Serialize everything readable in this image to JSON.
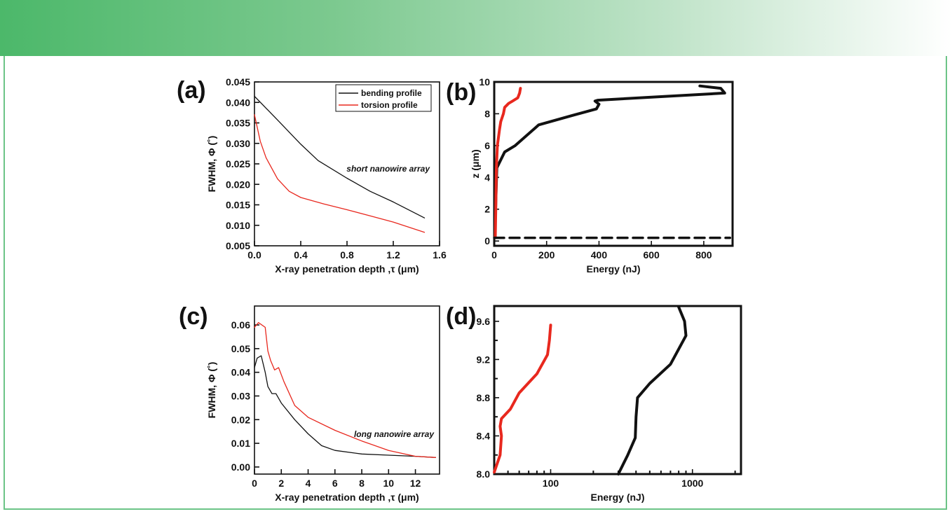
{
  "colors": {
    "bending": "#111111",
    "torsion": "#e8281e",
    "banner_start": "#4cb86a",
    "frame": "#6cc487"
  },
  "chart_data": [
    {
      "panel": "(a)",
      "type": "line",
      "xlabel": "X-ray penetration depth ,τ (μm)",
      "ylabel": "FWHM, Φ (˚)",
      "xlim": [
        0.0,
        1.6
      ],
      "ylim": [
        0.005,
        0.045
      ],
      "xticks": [
        "0.0",
        "0.4",
        "0.8",
        "1.2",
        "1.6"
      ],
      "yticks": [
        "0.005",
        "0.010",
        "0.015",
        "0.020",
        "0.025",
        "0.030",
        "0.035",
        "0.040",
        "0.045"
      ],
      "annotation": "short nanowire array",
      "legend": [
        "bending profile",
        "torsion profile"
      ],
      "series": [
        {
          "name": "bending profile",
          "x": [
            0.0,
            0.2,
            0.4,
            0.55,
            0.8,
            1.0,
            1.2,
            1.47
          ],
          "y": [
            0.0415,
            0.0357,
            0.0298,
            0.0258,
            0.0215,
            0.0183,
            0.0157,
            0.0118
          ]
        },
        {
          "name": "torsion profile",
          "x": [
            0.0,
            0.05,
            0.1,
            0.2,
            0.3,
            0.4,
            0.6,
            0.8,
            1.0,
            1.2,
            1.47
          ],
          "y": [
            0.037,
            0.0305,
            0.0265,
            0.0213,
            0.0183,
            0.0168,
            0.0152,
            0.0138,
            0.0123,
            0.0108,
            0.0083
          ]
        }
      ]
    },
    {
      "panel": "(b)",
      "type": "line",
      "xlabel": "Energy (nJ)",
      "ylabel": "z (μm)",
      "xlim": [
        0,
        910
      ],
      "ylim": [
        -0.3,
        10
      ],
      "xticks": [
        "0",
        "200",
        "400",
        "600",
        "800"
      ],
      "yticks": [
        "0",
        "2",
        "4",
        "6",
        "8",
        "10"
      ],
      "series": [
        {
          "name": "black",
          "x": [
            2,
            10,
            40,
            80,
            170,
            300,
            390,
            400,
            385,
            395,
            880,
            865,
            785
          ],
          "y": [
            0.2,
            4.6,
            5.6,
            6.0,
            7.3,
            7.9,
            8.3,
            8.6,
            8.8,
            8.85,
            9.3,
            9.6,
            9.75
          ]
        },
        {
          "name": "red",
          "x": [
            4,
            6,
            8,
            12,
            20,
            25,
            35,
            40,
            55,
            70,
            90,
            97,
            100
          ],
          "y": [
            0.2,
            2.0,
            4.5,
            6.0,
            7.0,
            7.5,
            8.0,
            8.4,
            8.65,
            8.8,
            9.0,
            9.3,
            9.6
          ]
        },
        {
          "name": "dashed",
          "x": [
            0,
            900
          ],
          "y": [
            0.2,
            0.2
          ]
        }
      ]
    },
    {
      "panel": "(c)",
      "type": "line",
      "xlabel": "X-ray penetration depth ,τ (μm)",
      "ylabel": "FWHM, Φ (˚)",
      "xlim": [
        0,
        13.8
      ],
      "ylim": [
        -0.003,
        0.068
      ],
      "xticks": [
        "0",
        "2",
        "4",
        "6",
        "8",
        "10",
        "12"
      ],
      "yticks": [
        "0.00",
        "0.01",
        "0.02",
        "0.03",
        "0.04",
        "0.05",
        "0.06"
      ],
      "annotation": "long nanowire array",
      "series": [
        {
          "name": "bending profile",
          "x": [
            0,
            0.2,
            0.5,
            0.8,
            1.0,
            1.3,
            1.6,
            2.0,
            3.0,
            4.0,
            5.0,
            6.0,
            8.0,
            10.0,
            12.0,
            13.5
          ],
          "y": [
            0.042,
            0.046,
            0.047,
            0.04,
            0.034,
            0.031,
            0.031,
            0.027,
            0.02,
            0.014,
            0.009,
            0.007,
            0.0055,
            0.005,
            0.0045,
            0.004
          ]
        },
        {
          "name": "torsion profile",
          "x": [
            0,
            0.3,
            0.8,
            1.0,
            1.2,
            1.5,
            1.8,
            2.2,
            3.0,
            4.0,
            6.0,
            8.0,
            10.0,
            12.0,
            13.5
          ],
          "y": [
            0.059,
            0.061,
            0.059,
            0.049,
            0.045,
            0.041,
            0.042,
            0.036,
            0.026,
            0.021,
            0.0155,
            0.011,
            0.007,
            0.0045,
            0.004
          ]
        }
      ]
    },
    {
      "panel": "(d)",
      "type": "line",
      "xscale": "log",
      "xlabel": "Energy (nJ)",
      "ylabel": "",
      "xlim": [
        40,
        2200
      ],
      "ylim": [
        8.0,
        9.76
      ],
      "xticks": [
        "100",
        "1000"
      ],
      "yticks": [
        "8.0",
        "8.4",
        "8.8",
        "9.2",
        "9.6"
      ],
      "series": [
        {
          "name": "black",
          "x": [
            300,
            350,
            395,
            400,
            410,
            500,
            700,
            900,
            880,
            800
          ],
          "y": [
            8.0,
            8.2,
            8.38,
            8.6,
            8.8,
            8.95,
            9.15,
            9.45,
            9.6,
            9.75
          ]
        },
        {
          "name": "red",
          "x": [
            40,
            44,
            45,
            44,
            45,
            52,
            60,
            80,
            95,
            98,
            100
          ],
          "y": [
            8.02,
            8.2,
            8.4,
            8.5,
            8.58,
            8.68,
            8.85,
            9.05,
            9.25,
            9.4,
            9.56
          ]
        }
      ]
    }
  ],
  "panel_labels": {
    "a": "(a)",
    "b": "(b)",
    "c": "(c)",
    "d": "(d)"
  }
}
